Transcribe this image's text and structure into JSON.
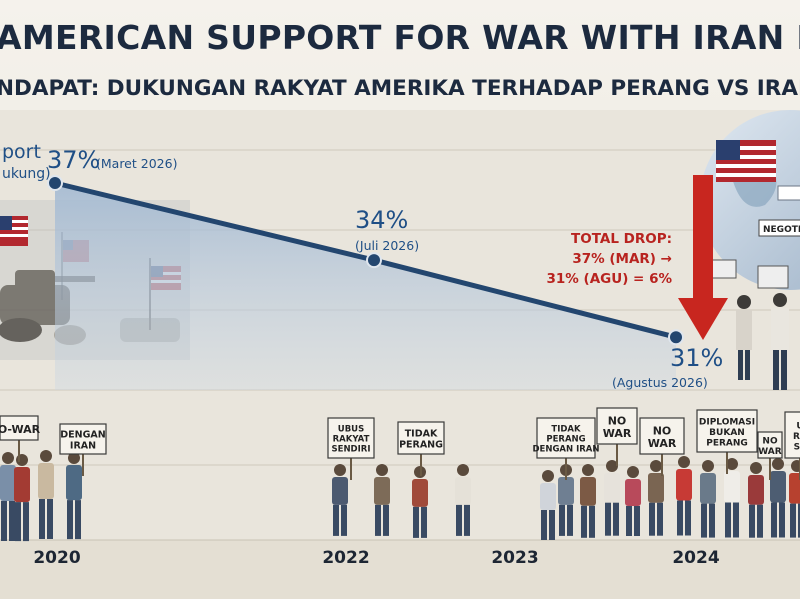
{
  "title": "AMERICAN SUPPORT FOR WAR WITH IRAN DROPS SHA",
  "subtitle": "NDAPAT: DUKUNGAN RAKYAT AMERIKA TERHADAP PERANG VS IRAN MENURUN",
  "legend_fragment": {
    "line1": "port",
    "line2": "ukung)"
  },
  "colors": {
    "line": "#23466f",
    "fill": "#a9bfd8",
    "accent": "#c8261f",
    "text": "#1c2a3f"
  },
  "chart_data": {
    "type": "line",
    "title": "AMERICAN SUPPORT FOR WAR WITH IRAN DROPS SHA",
    "subtitle": "NDAPAT: DUKUNGAN RAKYAT AMERIKA TERHADAP PERANG VS IRAN MENURUN",
    "x_ticks": [
      "2020",
      "2022",
      "2023",
      "2024"
    ],
    "series": [
      {
        "values": [
          37,
          34,
          31
        ],
        "value_labels": [
          "37%",
          "34%",
          "31%"
        ],
        "date_labels": [
          "(Maret 2026)",
          "(Juli 2026)",
          "(Agustus 2026)"
        ]
      }
    ],
    "annotation": {
      "line1": "TOTAL DROP:",
      "line2": "37% (MAR) →",
      "line3": "31% (AGU) = 6%"
    },
    "signs": [
      [
        "O-WAR"
      ],
      [
        "DENGAN",
        "IRAN"
      ],
      [
        "UBUS",
        "RAKYAT",
        "SENDIRI"
      ],
      [
        "TIDAK",
        "PERANG"
      ],
      [
        "TIDAK",
        "PERANG",
        "DENGAN IRAN"
      ],
      [
        "NO",
        "WAR"
      ],
      [
        "NO",
        "WAR"
      ],
      [
        "DIPLOMASI",
        "BUKAN",
        "PERANG"
      ],
      [
        "NO",
        "WAR"
      ],
      [
        "U",
        "RA",
        "SE"
      ]
    ],
    "badge": "NEGOTIATI",
    "grid": true,
    "legend": "top-left"
  }
}
